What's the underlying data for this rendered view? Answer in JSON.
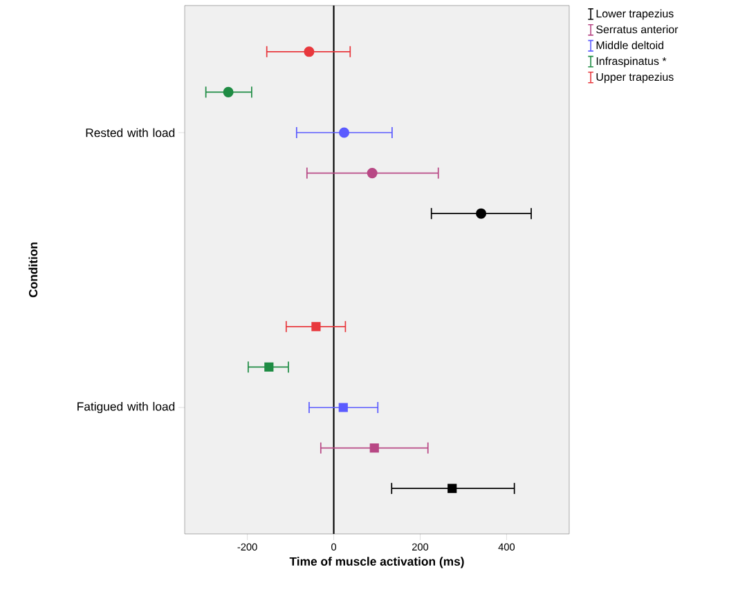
{
  "chart_data": {
    "type": "scatter",
    "orientation": "horizontal",
    "xlabel": "Time of muscle activation (ms)",
    "ylabel": "Condition",
    "categories": [
      "Rested with load",
      "Fatigued with load"
    ],
    "xlim": [
      -345,
      545
    ],
    "xticks": [
      -200,
      0,
      200,
      400
    ],
    "legend": "top right",
    "marker": [
      "circle",
      "square"
    ],
    "ref_lines": [
      {
        "axis": "x",
        "value": 0,
        "color": "#000000"
      }
    ],
    "series": [
      {
        "name": "Lower trapezius",
        "color": "#000000",
        "values": [
          341,
          274
        ],
        "errors": [
          [
            226,
            457
          ],
          [
            134,
            418
          ]
        ]
      },
      {
        "name": "Serratus anterior",
        "color": "#b84885",
        "values": [
          89,
          94
        ],
        "errors": [
          [
            -62,
            242
          ],
          [
            -30,
            218
          ]
        ]
      },
      {
        "name": "Middle deltoid",
        "color": "#5b5bff",
        "values": [
          24,
          22
        ],
        "errors": [
          [
            -86,
            135
          ],
          [
            -57,
            102
          ]
        ]
      },
      {
        "name": "Infraspinatus *",
        "color": "#1f8c44",
        "values": [
          -244,
          -150
        ],
        "errors": [
          [
            -296,
            -190
          ],
          [
            -198,
            -105
          ]
        ]
      },
      {
        "name": "Upper trapezius",
        "color": "#e8383d",
        "values": [
          -57,
          -41
        ],
        "errors": [
          [
            -155,
            38
          ],
          [
            -110,
            27
          ]
        ]
      }
    ]
  }
}
